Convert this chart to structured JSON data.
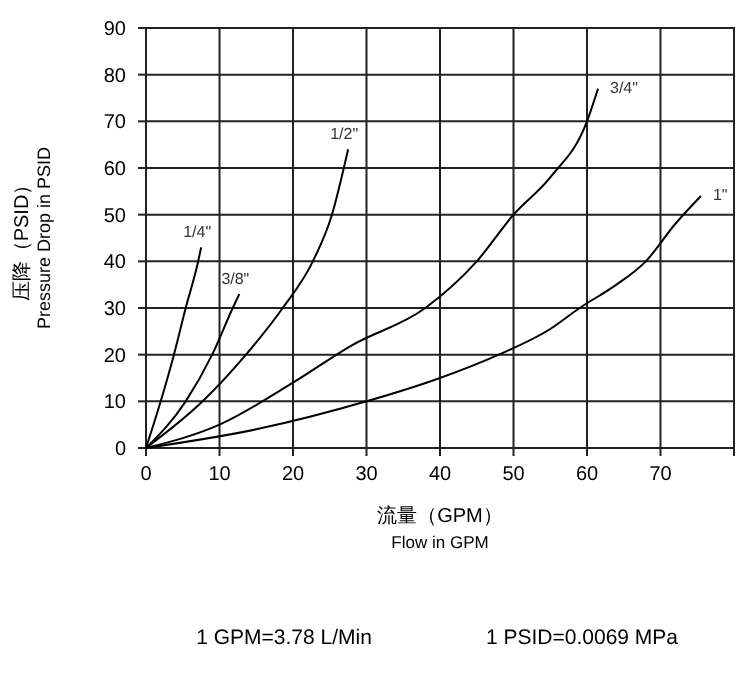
{
  "chart_data": {
    "type": "line",
    "xlabel": "流量（GPM）\nFlow in GPM",
    "ylabel": "压降（PSID）\nPressure Drop in PSID",
    "xlim": [
      0,
      80
    ],
    "ylim": [
      0,
      90
    ],
    "xticks": [
      0,
      10,
      20,
      30,
      40,
      50,
      60,
      70,
      {
        "value": 80,
        "label": null
      }
    ],
    "yticks": [
      0,
      10,
      20,
      30,
      40,
      50,
      60,
      70,
      80,
      90
    ],
    "grid": true,
    "marker": "none",
    "line_style": "solid",
    "series": [
      {
        "name": "1/4\"",
        "color": "#000000",
        "x": [
          0,
          2,
          3.8,
          5.4,
          7.1,
          7.5
        ],
        "values": [
          0,
          10,
          20,
          30,
          40,
          43
        ]
      },
      {
        "name": "3/8\"",
        "color": "#000000",
        "x": [
          0,
          5.4,
          9,
          11.8,
          12.7
        ],
        "values": [
          0,
          10,
          20,
          30,
          33
        ]
      },
      {
        "name": "1/2\"",
        "color": "#000000",
        "x": [
          0,
          7.7,
          13.6,
          18.6,
          22.7,
          25.3,
          27.5
        ],
        "values": [
          0,
          10,
          20,
          30,
          40,
          50,
          64
        ]
      },
      {
        "name": "3/4\"",
        "color": "#000000",
        "x": [
          0,
          10,
          20,
          28,
          38,
          45,
          50,
          55,
          60,
          61.5
        ],
        "values": [
          0,
          5,
          14,
          22,
          30,
          40,
          50,
          58,
          70,
          77
        ]
      },
      {
        "name": "1\"",
        "color": "#000000",
        "x": [
          0,
          15,
          30,
          40,
          48,
          55,
          59,
          64,
          68,
          72,
          75.5
        ],
        "values": [
          0,
          4,
          10,
          15,
          20,
          25.5,
          30,
          35,
          40,
          48,
          54
        ]
      }
    ],
    "annotations": [
      "1 GPM=3.78 L/Min",
      "1 PSID=0.0069 MPa"
    ]
  }
}
